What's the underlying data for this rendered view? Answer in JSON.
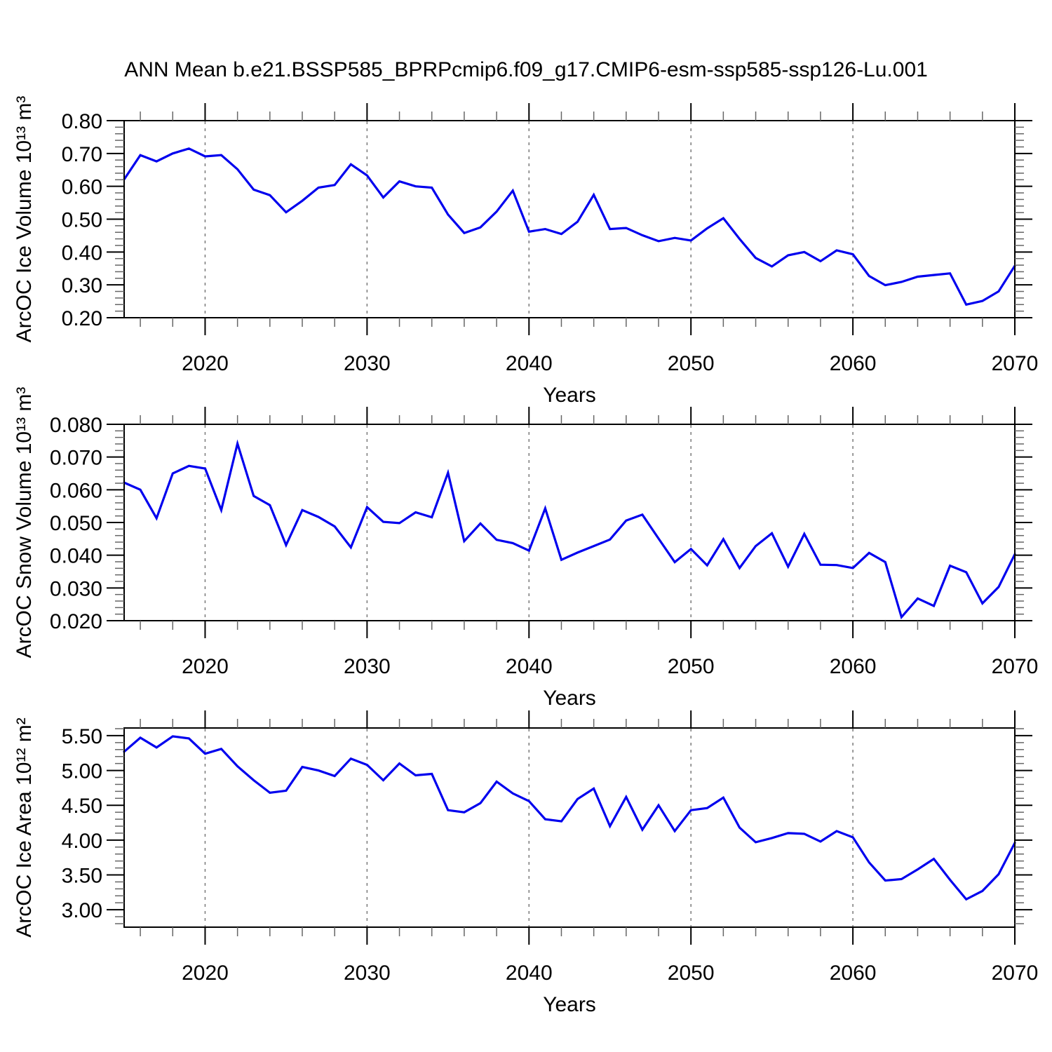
{
  "title": "ANN Mean b.e21.BSSP585_BPRPcmip6.f09_g17.CMIP6-esm-ssp585-ssp126-Lu.001",
  "colors": {
    "line": "#0000EE",
    "axis": "#000000",
    "minor_tick": "#666666",
    "grid": "#7a7a7a",
    "background": "#ffffff"
  },
  "chart_data": [
    {
      "type": "line",
      "ylabel": "ArcOC Ice Volume 10¹³ m³",
      "xlabel": "Years",
      "x_start": 2015,
      "x_end": 2070,
      "xlim": [
        2015,
        2070
      ],
      "ylim": [
        0.2,
        0.8
      ],
      "grid": "vertical-dashed",
      "legend": "none",
      "xticks": {
        "major": [
          2020,
          2030,
          2040,
          2050,
          2060,
          2070
        ],
        "labels": [
          "2020",
          "2030",
          "2040",
          "2050",
          "2060",
          "2070"
        ],
        "minor_step": 2
      },
      "yticks": {
        "values": [
          0.2,
          0.3,
          0.4,
          0.5,
          0.6,
          0.7,
          0.8
        ],
        "labels": [
          "0.20",
          "0.30",
          "0.40",
          "0.50",
          "0.60",
          "0.70",
          "0.80"
        ],
        "minor_step": 0.02
      },
      "gridlines_x": [
        2020,
        2030,
        2040,
        2050,
        2060
      ],
      "values": [
        0.621,
        0.695,
        0.676,
        0.7,
        0.715,
        0.691,
        0.695,
        0.652,
        0.59,
        0.573,
        0.521,
        0.556,
        0.596,
        0.604,
        0.667,
        0.633,
        0.566,
        0.615,
        0.6,
        0.596,
        0.514,
        0.458,
        0.475,
        0.523,
        0.587,
        0.462,
        0.47,
        0.455,
        0.492,
        0.574,
        0.47,
        0.473,
        0.451,
        0.433,
        0.443,
        0.435,
        0.472,
        0.503,
        0.44,
        0.382,
        0.356,
        0.39,
        0.4,
        0.372,
        0.405,
        0.393,
        0.327,
        0.299,
        0.309,
        0.325,
        0.33,
        0.335,
        0.24,
        0.251,
        0.28,
        0.358
      ]
    },
    {
      "type": "line",
      "ylabel": "ArcOC Snow Volume 10¹³ m³",
      "xlabel": "Years",
      "x_start": 2015,
      "x_end": 2070,
      "xlim": [
        2015,
        2070
      ],
      "ylim": [
        0.02,
        0.08
      ],
      "grid": "vertical-dashed",
      "legend": "none",
      "xticks": {
        "major": [
          2020,
          2030,
          2040,
          2050,
          2060,
          2070
        ],
        "labels": [
          "2020",
          "2030",
          "2040",
          "2050",
          "2060",
          "2070"
        ],
        "minor_step": 2
      },
      "yticks": {
        "values": [
          0.02,
          0.03,
          0.04,
          0.05,
          0.06,
          0.07,
          0.08
        ],
        "labels": [
          "0.020",
          "0.030",
          "0.040",
          "0.050",
          "0.060",
          "0.070",
          "0.080"
        ],
        "minor_step": 0.002
      },
      "gridlines_x": [
        2020,
        2030,
        2040,
        2050,
        2060
      ],
      "values": [
        0.0622,
        0.06,
        0.0513,
        0.065,
        0.0673,
        0.0665,
        0.0538,
        0.0741,
        0.0581,
        0.0553,
        0.0431,
        0.0538,
        0.0517,
        0.0488,
        0.0424,
        0.0547,
        0.0502,
        0.0498,
        0.0531,
        0.0516,
        0.0652,
        0.0443,
        0.0497,
        0.0447,
        0.0437,
        0.0414,
        0.0543,
        0.0386,
        0.0408,
        0.0428,
        0.0448,
        0.0506,
        0.0524,
        0.0451,
        0.0379,
        0.0419,
        0.0369,
        0.0449,
        0.0361,
        0.0428,
        0.0467,
        0.0365,
        0.0465,
        0.0371,
        0.037,
        0.0361,
        0.0407,
        0.0379,
        0.0211,
        0.0268,
        0.0245,
        0.0368,
        0.0348,
        0.0253,
        0.0303,
        0.0403
      ]
    },
    {
      "type": "line",
      "ylabel": "ArcOC Ice Area 10¹² m²",
      "xlabel": "Years",
      "x_start": 2015,
      "x_end": 2070,
      "xlim": [
        2015,
        2070
      ],
      "ylim": [
        2.75,
        5.61
      ],
      "grid": "vertical-dashed",
      "legend": "none",
      "xticks": {
        "major": [
          2020,
          2030,
          2040,
          2050,
          2060,
          2070
        ],
        "labels": [
          "2020",
          "2030",
          "2040",
          "2050",
          "2060",
          "2070"
        ],
        "minor_step": 2
      },
      "yticks": {
        "values": [
          3.0,
          3.5,
          4.0,
          4.5,
          5.0,
          5.5
        ],
        "labels": [
          "3.00",
          "3.50",
          "4.00",
          "4.50",
          "5.00",
          "5.50"
        ],
        "minor_step": 0.1
      },
      "gridlines_x": [
        2020,
        2030,
        2040,
        2050,
        2060
      ],
      "values": [
        5.27,
        5.47,
        5.33,
        5.49,
        5.46,
        5.24,
        5.31,
        5.06,
        4.86,
        4.68,
        4.71,
        5.05,
        5.0,
        4.92,
        5.17,
        5.08,
        4.86,
        5.1,
        4.93,
        4.95,
        4.43,
        4.4,
        4.53,
        4.84,
        4.67,
        4.56,
        4.3,
        4.27,
        4.59,
        4.74,
        4.2,
        4.62,
        4.15,
        4.5,
        4.13,
        4.43,
        4.46,
        4.61,
        4.18,
        3.97,
        4.03,
        4.1,
        4.09,
        3.98,
        4.13,
        4.04,
        3.68,
        3.42,
        3.44,
        3.58,
        3.73,
        3.43,
        3.15,
        3.27,
        3.51,
        3.96
      ]
    }
  ]
}
